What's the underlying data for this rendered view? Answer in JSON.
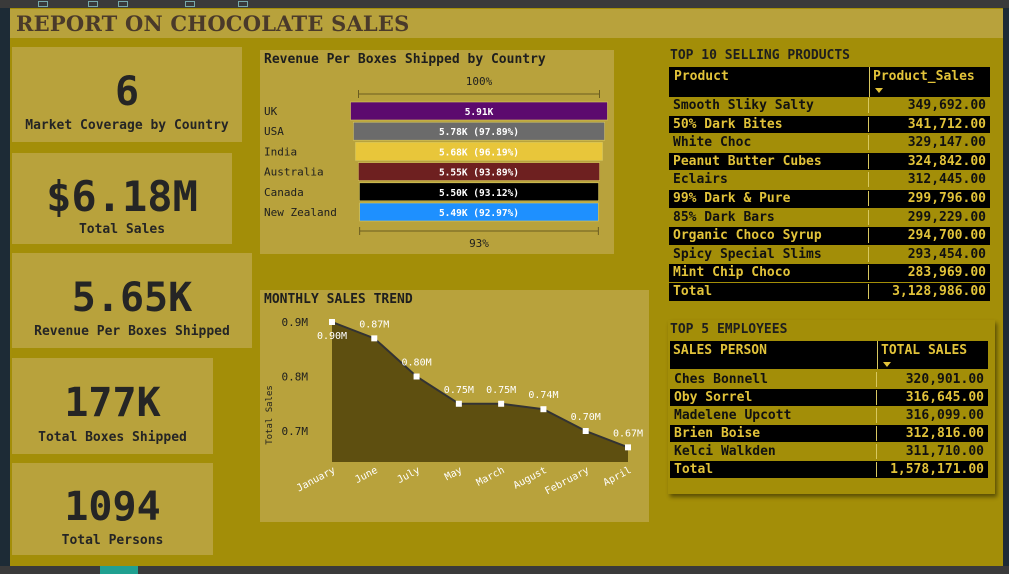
{
  "title": "REPORT ON CHOCOLATE SALES",
  "kpis": [
    {
      "value": "6",
      "label": "Market Coverage by Country"
    },
    {
      "value": "$6.18M",
      "label": "Total Sales"
    },
    {
      "value": "5.65K",
      "label": "Revenue Per Boxes Shipped"
    },
    {
      "value": "177K",
      "label": "Total Boxes Shipped"
    },
    {
      "value": "1094",
      "label": "Total Persons"
    }
  ],
  "chart_data": [
    {
      "type": "bar",
      "orientation": "horizontal-funnel",
      "title": "Revenue Per Boxes Shipped by Country",
      "top_label": "100%",
      "bottom_label": "93%",
      "categories": [
        "UK",
        "USA",
        "India",
        "Australia",
        "Canada",
        "New Zealand"
      ],
      "values": [
        5.91,
        5.78,
        5.68,
        5.55,
        5.5,
        5.49
      ],
      "value_unit": "K",
      "data_labels": [
        "5.91K",
        "5.78K (97.89%)",
        "5.68K (96.19%)",
        "5.55K (93.89%)",
        "5.50K (93.12%)",
        "5.49K (92.97%)"
      ],
      "colors": [
        "#5c0a6e",
        "#6b6b6b",
        "#e8c63a",
        "#6e2020",
        "#000000",
        "#1e90ff"
      ]
    },
    {
      "type": "area",
      "title": "MONTHLY SALES TREND",
      "ylabel": "Total Sales",
      "categories": [
        "January",
        "June",
        "July",
        "May",
        "March",
        "August",
        "February",
        "April"
      ],
      "values": [
        0.9,
        0.87,
        0.8,
        0.75,
        0.75,
        0.74,
        0.7,
        0.67
      ],
      "data_labels": [
        "0.90M",
        "0.87M",
        "0.80M",
        "0.75M",
        "0.75M",
        "0.74M",
        "0.70M",
        "0.67M"
      ],
      "yticks": [
        "0.9M",
        "0.8M",
        "0.7M"
      ],
      "ytick_values": [
        0.9,
        0.8,
        0.7
      ],
      "fill_color": "#5e4f10",
      "line_color": "#333333"
    }
  ],
  "products": {
    "title": "TOP 10 SELLING PRODUCTS",
    "col1": "Product",
    "col2": "Product_Sales",
    "rows": [
      {
        "name": "Smooth Sliky Salty",
        "sales": "349,692.00"
      },
      {
        "name": "50% Dark Bites",
        "sales": "341,712.00"
      },
      {
        "name": "White Choc",
        "sales": "329,147.00"
      },
      {
        "name": "Peanut Butter Cubes",
        "sales": "324,842.00"
      },
      {
        "name": "Eclairs",
        "sales": "312,445.00"
      },
      {
        "name": "99% Dark & Pure",
        "sales": "299,796.00"
      },
      {
        "name": "85% Dark Bars",
        "sales": "299,229.00"
      },
      {
        "name": "Organic Choco Syrup",
        "sales": "294,700.00"
      },
      {
        "name": "Spicy Special Slims",
        "sales": "293,454.00"
      },
      {
        "name": "Mint Chip Choco",
        "sales": "283,969.00"
      }
    ],
    "total_label": "Total",
    "total_value": "3,128,986.00"
  },
  "employees": {
    "title": "TOP 5 EMPLOYEES",
    "col1": "SALES PERSON",
    "col2": "TOTAL SALES",
    "rows": [
      {
        "name": "Ches Bonnell",
        "sales": "320,901.00"
      },
      {
        "name": "Oby Sorrel",
        "sales": "316,645.00"
      },
      {
        "name": "Madelene Upcott",
        "sales": "316,099.00"
      },
      {
        "name": "Brien Boise",
        "sales": "312,816.00"
      },
      {
        "name": "Kelci Walkden",
        "sales": "311,710.00"
      }
    ],
    "total_label": "Total",
    "total_value": "1,578,171.00"
  }
}
